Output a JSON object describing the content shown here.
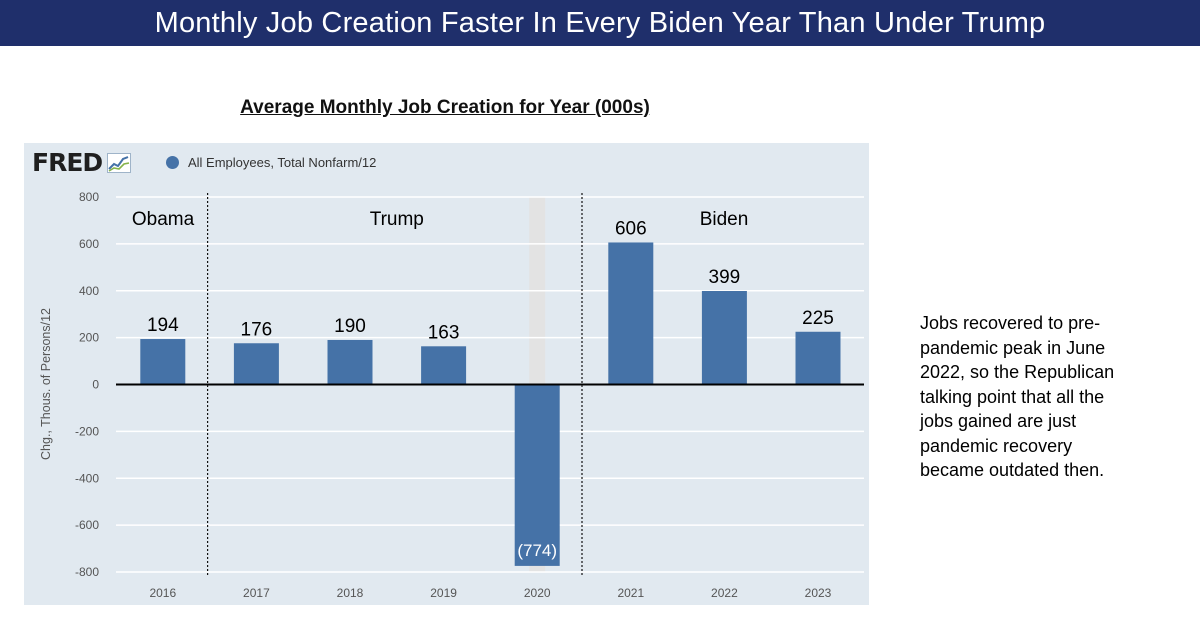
{
  "banner": {
    "title": "Monthly Job Creation Faster In Every Biden Year Than Under Trump"
  },
  "chart_data": {
    "type": "bar",
    "title": "Average Monthly Job Creation for Year (000s)",
    "source_logo": "FRED",
    "series": [
      {
        "name": "All Employees, Total Nonfarm/12",
        "values": [
          194,
          176,
          190,
          163,
          -774,
          606,
          399,
          225
        ]
      }
    ],
    "categories": [
      "2016",
      "2017",
      "2018",
      "2019",
      "2020",
      "2021",
      "2022",
      "2023"
    ],
    "data_labels": [
      "194",
      "176",
      "190",
      "163",
      "(774)",
      "606",
      "399",
      "225"
    ],
    "ylabel": "Chg., Thous. of Persons/12",
    "ylim": [
      -800,
      800
    ],
    "yticks": [
      800,
      600,
      400,
      200,
      0,
      -200,
      -400,
      -600,
      -800
    ],
    "ytick_labels": [
      "800",
      "600",
      "400",
      "200",
      "0",
      "-200",
      "-400",
      "-600",
      "-800"
    ],
    "grid": true,
    "recession_shading_category": "2020",
    "annotations": [
      {
        "text": "Obama",
        "region": "2016"
      },
      {
        "text": "Trump",
        "region": "2017-2020"
      },
      {
        "text": "Biden",
        "region": "2021-2023"
      }
    ],
    "dividers_after": [
      "2016",
      "2020"
    ],
    "colors": {
      "bar": "#4572a7",
      "panel": "#e1e9f0",
      "grid": "#ffffff",
      "shade": "#e3e3e3",
      "zero_line": "#000000"
    }
  },
  "side_note": {
    "lines": [
      "Jobs recovered to pre-",
      "pandemic peak in June",
      "2022, so the Republican",
      "talking point that all the",
      "jobs gained are just",
      "pandemic recovery",
      "became outdated then."
    ]
  }
}
